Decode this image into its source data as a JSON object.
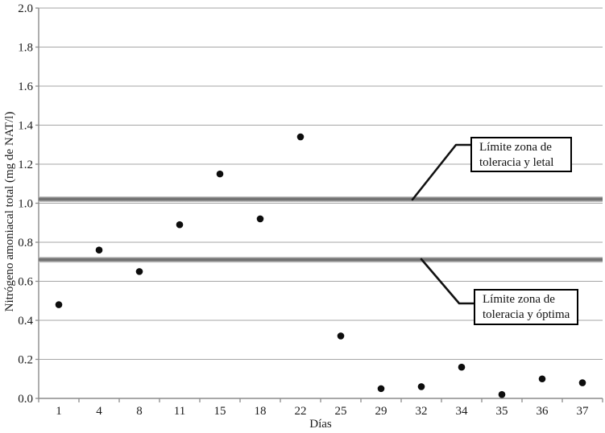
{
  "chart_data": {
    "type": "scatter",
    "title": "",
    "xlabel": "Días",
    "ylabel": "Nitrógeno amoniacal total (mg de NAT/l)",
    "categories": [
      "1",
      "4",
      "8",
      "11",
      "15",
      "18",
      "22",
      "25",
      "29",
      "32",
      "34",
      "35",
      "36",
      "37"
    ],
    "values": [
      0.48,
      0.76,
      0.65,
      0.89,
      1.15,
      0.92,
      1.34,
      0.32,
      0.05,
      0.06,
      0.16,
      0.02,
      0.1,
      0.08
    ],
    "ylim": [
      0.0,
      2.0
    ],
    "ytick_step": 0.2,
    "ytick_decimals": 1,
    "grid": true,
    "legend_position": "none",
    "reference_lines": [
      {
        "value": 1.02,
        "label": "Límite zona de toleracia y letal",
        "label_lines": [
          "Límite zona de",
          "toleracia y letal"
        ]
      },
      {
        "value": 0.71,
        "label": "Límite zona de toleracia y óptima",
        "label_lines": [
          "Límite zona de",
          "toleracia y óptima"
        ]
      }
    ]
  },
  "colors": {
    "background": "#ffffff",
    "gridline": "#a6a6a6",
    "axis": "#8c8c8c",
    "tick_text": "#1a1a1a",
    "point": "#0d0d0d",
    "limit_line": "#6e6e6e",
    "annotation_border": "#000000",
    "callout_line": "#111111"
  }
}
